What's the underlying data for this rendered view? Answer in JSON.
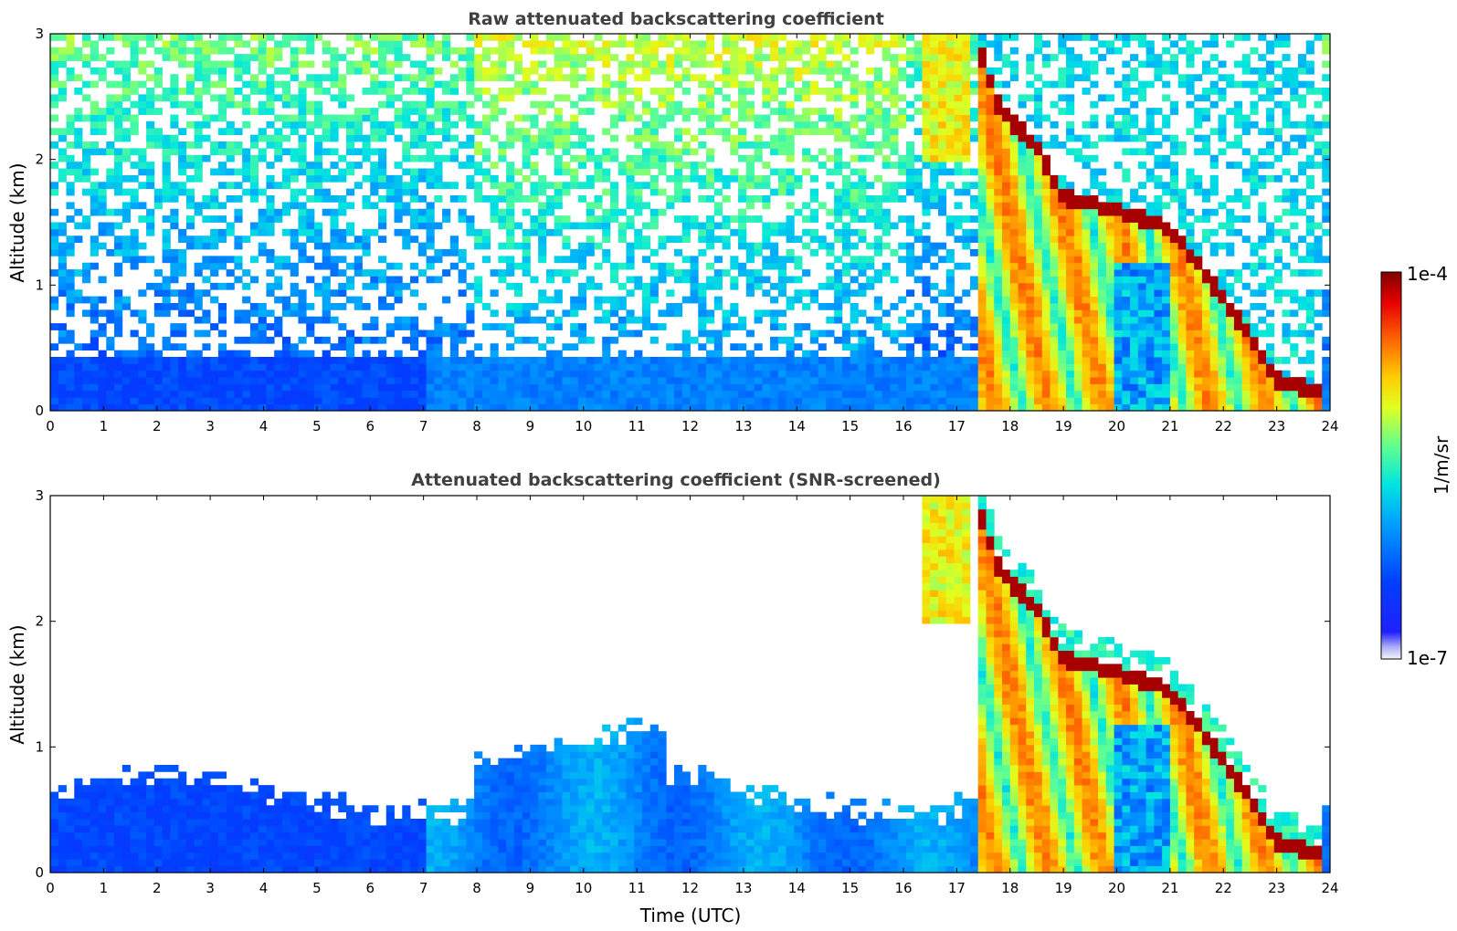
{
  "chart_data": [
    {
      "type": "heatmap",
      "title": "Raw attenuated backscattering coefficient",
      "xlabel": "",
      "ylabel": "Altitude (km)",
      "xlim": [
        0,
        24
      ],
      "ylim": [
        0,
        3
      ],
      "x_ticks": [
        "0",
        "1",
        "2",
        "3",
        "4",
        "5",
        "6",
        "7",
        "8",
        "9",
        "10",
        "11",
        "12",
        "13",
        "14",
        "15",
        "16",
        "17",
        "18",
        "19",
        "20",
        "21",
        "22",
        "23",
        "24"
      ],
      "y_ticks": [
        "0",
        "1",
        "2",
        "3"
      ],
      "value_scale": "log",
      "value_range": [
        1e-07,
        0.0001
      ],
      "features": {
        "boundary_layer_top_km": 0.5,
        "cloud_start_time": 17.3,
        "cloud_layer": [
          {
            "time": 17.4,
            "altitude_km": 2.9
          },
          {
            "time": 17.8,
            "altitude_km": 2.4
          },
          {
            "time": 18.5,
            "altitude_km": 2.1
          },
          {
            "time": 19.0,
            "altitude_km": 1.7
          },
          {
            "time": 20.0,
            "altitude_km": 1.6
          },
          {
            "time": 21.0,
            "altitude_km": 1.45
          },
          {
            "time": 22.0,
            "altitude_km": 0.9
          },
          {
            "time": 23.0,
            "altitude_km": 0.25
          },
          {
            "time": 23.8,
            "altitude_km": 0.15
          }
        ]
      }
    },
    {
      "type": "heatmap",
      "title": "Attenuated backscattering coefficient (SNR-screened)",
      "xlabel": "Time (UTC)",
      "ylabel": "Altitude (km)",
      "xlim": [
        0,
        24
      ],
      "ylim": [
        0,
        3
      ],
      "x_ticks": [
        "0",
        "1",
        "2",
        "3",
        "4",
        "5",
        "6",
        "7",
        "8",
        "9",
        "10",
        "11",
        "12",
        "13",
        "14",
        "15",
        "16",
        "17",
        "18",
        "19",
        "20",
        "21",
        "22",
        "23",
        "24"
      ],
      "y_ticks": [
        "0",
        "1",
        "2",
        "3"
      ],
      "value_scale": "log",
      "value_range": [
        1e-07,
        0.0001
      ]
    }
  ],
  "colorbar": {
    "label": "1/m/sr",
    "max_label": "1e-4",
    "min_label": "1e-7"
  }
}
